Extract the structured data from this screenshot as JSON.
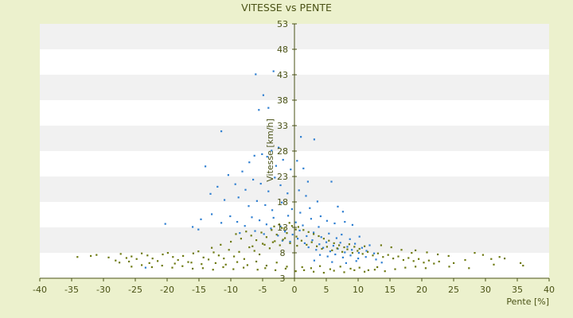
{
  "chart_data": {
    "type": "scatter",
    "title": "VITESSE vs PENTE",
    "xlabel": "Pente [%]",
    "ylabel": "Vitesse [km/h]",
    "xlim": [
      -40,
      40
    ],
    "ylim": [
      3,
      53
    ],
    "x_ticks": [
      -40,
      -35,
      -30,
      -25,
      -20,
      -15,
      -10,
      -5,
      0,
      5,
      10,
      15,
      20,
      25,
      30,
      35,
      40
    ],
    "y_ticks": [
      3,
      8,
      13,
      18,
      23,
      28,
      33,
      38,
      43,
      48,
      53
    ],
    "grid": "alternating horizontal bands",
    "legend": "none",
    "colors": {
      "page_background": "#ecf1cd",
      "plot_background": "#ffffff",
      "band": "#f1f1f1",
      "axis": "#4a5216",
      "series_1": "#2f7fd1",
      "series_2": "#6e7a12"
    },
    "series": [
      {
        "color": "#2f7fd1",
        "points": [
          [
            -6.1,
            43.1
          ],
          [
            -3.3,
            43.7
          ],
          [
            -4.9,
            39.0
          ],
          [
            -5.6,
            36.1
          ],
          [
            -11.5,
            31.9
          ],
          [
            -4.1,
            36.5
          ],
          [
            1.0,
            30.8
          ],
          [
            3.1,
            30.3
          ],
          [
            -2.5,
            28.7
          ],
          [
            -14.0,
            25.0
          ],
          [
            -10.4,
            23.3
          ],
          [
            -8.2,
            24.0
          ],
          [
            -7.1,
            25.8
          ],
          [
            -6.3,
            27.1
          ],
          [
            -5.1,
            27.4
          ],
          [
            -4.3,
            26.9
          ],
          [
            -3.6,
            28.1
          ],
          [
            -2.9,
            25.1
          ],
          [
            -1.8,
            26.3
          ],
          [
            -0.6,
            24.4
          ],
          [
            0.4,
            26.1
          ],
          [
            1.4,
            24.6
          ],
          [
            2.1,
            22.0
          ],
          [
            5.8,
            22.0
          ],
          [
            -12.1,
            21.0
          ],
          [
            -9.3,
            21.5
          ],
          [
            -7.7,
            20.4
          ],
          [
            -6.5,
            22.4
          ],
          [
            -5.3,
            21.6
          ],
          [
            -4.1,
            20.1
          ],
          [
            -3.1,
            22.8
          ],
          [
            -2.2,
            21.3
          ],
          [
            -1.1,
            19.7
          ],
          [
            0.7,
            20.3
          ],
          [
            1.8,
            19.2
          ],
          [
            3.6,
            18.1
          ],
          [
            -13.2,
            19.6
          ],
          [
            -11.0,
            18.4
          ],
          [
            -8.8,
            18.9
          ],
          [
            -7.2,
            17.2
          ],
          [
            -5.9,
            18.2
          ],
          [
            -4.6,
            17.4
          ],
          [
            -3.5,
            16.4
          ],
          [
            -2.0,
            17.9
          ],
          [
            -0.4,
            16.6
          ],
          [
            0.9,
            15.9
          ],
          [
            2.4,
            16.8
          ],
          [
            4.1,
            15.2
          ],
          [
            6.8,
            17.1
          ],
          [
            7.6,
            16.1
          ],
          [
            -20.3,
            13.7
          ],
          [
            -16.0,
            13.1
          ],
          [
            -14.7,
            14.6
          ],
          [
            -13.0,
            15.6
          ],
          [
            -11.5,
            13.9
          ],
          [
            -10.1,
            15.2
          ],
          [
            -9.0,
            14.1
          ],
          [
            -7.8,
            13.3
          ],
          [
            -6.7,
            15.0
          ],
          [
            -5.5,
            14.4
          ],
          [
            -4.4,
            13.6
          ],
          [
            -3.3,
            14.9
          ],
          [
            -2.2,
            13.2
          ],
          [
            -1.0,
            15.3
          ],
          [
            0.2,
            14.0
          ],
          [
            1.3,
            13.4
          ],
          [
            2.6,
            14.7
          ],
          [
            3.8,
            13.1
          ],
          [
            5.1,
            14.3
          ],
          [
            6.3,
            13.8
          ],
          [
            7.9,
            14.1
          ],
          [
            9.1,
            13.5
          ],
          [
            -15.1,
            12.6
          ],
          [
            -8.6,
            11.9
          ],
          [
            -6.2,
            12.3
          ],
          [
            -4.8,
            11.7
          ],
          [
            -3.7,
            12.8
          ],
          [
            -2.6,
            11.4
          ],
          [
            -1.5,
            12.2
          ],
          [
            -0.3,
            11.6
          ],
          [
            0.8,
            12.4
          ],
          [
            1.9,
            11.3
          ],
          [
            3.0,
            12.0
          ],
          [
            4.2,
            11.1
          ],
          [
            5.4,
            11.8
          ],
          [
            6.6,
            10.9
          ],
          [
            7.4,
            11.6
          ],
          [
            8.7,
            10.7
          ],
          [
            10.2,
            11.2
          ],
          [
            -1.9,
            10.4
          ],
          [
            -0.7,
            10.2
          ],
          [
            0.5,
            10.8
          ],
          [
            1.6,
            9.9
          ],
          [
            2.8,
            10.5
          ],
          [
            3.9,
            9.7
          ],
          [
            5.0,
            10.1
          ],
          [
            6.1,
            9.4
          ],
          [
            7.2,
            10.0
          ],
          [
            8.3,
            9.2
          ],
          [
            9.5,
            9.8
          ],
          [
            10.6,
            9.0
          ],
          [
            11.8,
            9.5
          ],
          [
            2.2,
            9.1
          ],
          [
            3.4,
            8.6
          ],
          [
            4.5,
            9.0
          ],
          [
            5.6,
            8.3
          ],
          [
            6.8,
            8.8
          ],
          [
            7.9,
            8.1
          ],
          [
            9.0,
            8.6
          ],
          [
            10.1,
            8.0
          ],
          [
            11.3,
            8.4
          ],
          [
            12.5,
            7.9
          ],
          [
            4.0,
            7.6
          ],
          [
            5.2,
            7.3
          ],
          [
            6.4,
            7.7
          ],
          [
            7.6,
            7.1
          ],
          [
            8.8,
            7.5
          ],
          [
            10.0,
            6.9
          ],
          [
            11.2,
            7.2
          ],
          [
            12.8,
            6.7
          ],
          [
            3.1,
            6.5
          ],
          [
            5.9,
            6.2
          ],
          [
            8.1,
            6.0
          ],
          [
            9.7,
            6.4
          ],
          [
            13.7,
            6.1
          ],
          [
            -23.4,
            5.1
          ]
        ]
      },
      {
        "color": "#6e7a12",
        "points": [
          [
            -34.1,
            7.2
          ],
          [
            -32.0,
            7.4
          ],
          [
            -31.1,
            7.6
          ],
          [
            -29.2,
            7.1
          ],
          [
            -28.1,
            6.5
          ],
          [
            -27.3,
            7.8
          ],
          [
            -26.4,
            7.0
          ],
          [
            -25.6,
            7.3
          ],
          [
            -24.8,
            6.8
          ],
          [
            -24.0,
            7.9
          ],
          [
            -23.1,
            7.5
          ],
          [
            -22.3,
            6.9
          ],
          [
            -21.5,
            6.4
          ],
          [
            -20.7,
            7.7
          ],
          [
            -19.9,
            8.0
          ],
          [
            -19.1,
            7.2
          ],
          [
            -18.3,
            6.6
          ],
          [
            -17.5,
            7.4
          ],
          [
            -16.7,
            6.2
          ],
          [
            -15.9,
            7.9
          ],
          [
            -15.1,
            8.3
          ],
          [
            -14.3,
            7.1
          ],
          [
            -13.5,
            6.7
          ],
          [
            -12.7,
            8.1
          ],
          [
            -11.9,
            7.5
          ],
          [
            -11.1,
            6.9
          ],
          [
            -10.3,
            8.6
          ],
          [
            -9.5,
            7.3
          ],
          [
            -8.7,
            8.2
          ],
          [
            -7.9,
            6.8
          ],
          [
            -7.1,
            9.1
          ],
          [
            -6.3,
            8.4
          ],
          [
            -5.5,
            7.7
          ],
          [
            -4.7,
            9.6
          ],
          [
            -3.9,
            8.9
          ],
          [
            -3.1,
            10.3
          ],
          [
            -2.3,
            9.5
          ],
          [
            -1.5,
            10.9
          ],
          [
            -0.7,
            9.9
          ],
          [
            -27.5,
            6.1
          ],
          [
            -26.0,
            6.3
          ],
          [
            -22.8,
            6.0
          ],
          [
            -18.8,
            5.9
          ],
          [
            -16.2,
            6.1
          ],
          [
            -14.6,
            5.8
          ],
          [
            -12.4,
            6.0
          ],
          [
            -10.8,
            5.7
          ],
          [
            -9.0,
            6.2
          ],
          [
            -7.4,
            5.6
          ],
          [
            -6.0,
            6.3
          ],
          [
            -4.4,
            5.5
          ],
          [
            -2.8,
            6.1
          ],
          [
            -1.2,
            5.3
          ],
          [
            -13.0,
            9.0
          ],
          [
            -11.6,
            9.6
          ],
          [
            -10.0,
            10.2
          ],
          [
            -8.4,
            10.8
          ],
          [
            -6.8,
            11.4
          ],
          [
            -5.2,
            12.0
          ],
          [
            -3.6,
            12.5
          ],
          [
            -2.0,
            12.9
          ],
          [
            -0.4,
            13.3
          ],
          [
            -9.2,
            11.7
          ],
          [
            -7.6,
            12.2
          ],
          [
            -6.0,
            10.5
          ],
          [
            -4.4,
            11.1
          ],
          [
            -2.8,
            11.6
          ],
          [
            -1.2,
            11.9
          ],
          [
            0.2,
            12.6
          ],
          [
            -6.6,
            9.3
          ],
          [
            -5.0,
            9.8
          ],
          [
            -3.4,
            10.1
          ],
          [
            -1.8,
            10.6
          ],
          [
            0.4,
            9.4
          ],
          [
            -5.8,
            4.7
          ],
          [
            -4.6,
            5.0
          ],
          [
            -3.0,
            4.6
          ],
          [
            -1.4,
            4.9
          ],
          [
            0.2,
            4.4
          ],
          [
            1.2,
            5.2
          ],
          [
            2.6,
            5.0
          ],
          [
            4.0,
            5.4
          ],
          [
            5.6,
            4.8
          ],
          [
            7.2,
            5.3
          ],
          [
            8.8,
            4.9
          ],
          [
            10.2,
            5.1
          ],
          [
            11.6,
            4.6
          ],
          [
            13.0,
            5.2
          ],
          [
            0.3,
            11.2
          ],
          [
            1.1,
            10.4
          ],
          [
            1.9,
            9.6
          ],
          [
            2.7,
            10.1
          ],
          [
            3.5,
            9.3
          ],
          [
            4.3,
            8.8
          ],
          [
            5.1,
            9.2
          ],
          [
            5.9,
            8.5
          ],
          [
            6.7,
            8.9
          ],
          [
            7.5,
            8.2
          ],
          [
            8.3,
            8.7
          ],
          [
            9.1,
            8.0
          ],
          [
            9.9,
            8.4
          ],
          [
            10.7,
            7.8
          ],
          [
            11.5,
            8.2
          ],
          [
            12.3,
            7.5
          ],
          [
            13.1,
            7.9
          ],
          [
            13.9,
            7.2
          ],
          [
            14.7,
            7.6
          ],
          [
            15.5,
            6.9
          ],
          [
            16.3,
            7.3
          ],
          [
            17.1,
            6.6
          ],
          [
            17.9,
            7.0
          ],
          [
            18.7,
            6.4
          ],
          [
            19.5,
            6.8
          ],
          [
            20.3,
            6.1
          ],
          [
            21.1,
            6.5
          ],
          [
            21.9,
            5.9
          ],
          [
            22.7,
            6.3
          ],
          [
            24.2,
            7.4
          ],
          [
            25.0,
            6.0
          ],
          [
            26.8,
            6.6
          ],
          [
            28.3,
            8.0
          ],
          [
            29.6,
            7.6
          ],
          [
            30.9,
            6.8
          ],
          [
            32.2,
            7.2
          ],
          [
            33.0,
            6.9
          ],
          [
            35.5,
            6.0
          ],
          [
            35.9,
            5.5
          ],
          [
            19.0,
            8.5
          ],
          [
            20.8,
            8.1
          ],
          [
            22.5,
            7.7
          ],
          [
            24.3,
            5.3
          ],
          [
            27.4,
            5.0
          ],
          [
            31.3,
            5.7
          ],
          [
            13.6,
            9.5
          ],
          [
            15.2,
            9.1
          ],
          [
            16.8,
            8.6
          ],
          [
            18.4,
            8.0
          ],
          [
            1.5,
            4.6
          ],
          [
            3.0,
            4.3
          ],
          [
            4.6,
            4.1
          ],
          [
            6.2,
            4.5
          ],
          [
            7.8,
            4.2
          ],
          [
            9.4,
            4.6
          ],
          [
            11.0,
            4.3
          ],
          [
            12.6,
            4.7
          ],
          [
            14.2,
            4.4
          ],
          [
            15.8,
            4.8
          ],
          [
            17.4,
            5.1
          ],
          [
            19.0,
            5.3
          ],
          [
            20.6,
            5.0
          ],
          [
            2.2,
            12.1
          ],
          [
            3.0,
            11.7
          ],
          [
            3.8,
            11.3
          ],
          [
            4.6,
            10.8
          ],
          [
            5.4,
            10.4
          ],
          [
            6.2,
            9.9
          ],
          [
            7.0,
            9.5
          ],
          [
            7.8,
            9.1
          ],
          [
            8.6,
            9.7
          ],
          [
            9.4,
            9.2
          ],
          [
            10.2,
            8.8
          ],
          [
            11.0,
            9.3
          ],
          [
            -3.2,
            13.2
          ],
          [
            -2.4,
            13.6
          ],
          [
            -1.6,
            12.8
          ],
          [
            -0.8,
            13.9
          ],
          [
            0.6,
            13.1
          ],
          [
            1.4,
            12.5
          ],
          [
            -8.0,
            5.1
          ],
          [
            -9.6,
            4.8
          ],
          [
            -11.2,
            5.2
          ],
          [
            -12.8,
            4.7
          ],
          [
            -14.4,
            5.0
          ],
          [
            -16.0,
            4.9
          ],
          [
            -17.6,
            5.4
          ],
          [
            -19.2,
            5.1
          ],
          [
            -20.8,
            5.5
          ],
          [
            -22.4,
            5.2
          ],
          [
            -24.0,
            5.6
          ],
          [
            -25.6,
            5.3
          ]
        ]
      }
    ]
  }
}
